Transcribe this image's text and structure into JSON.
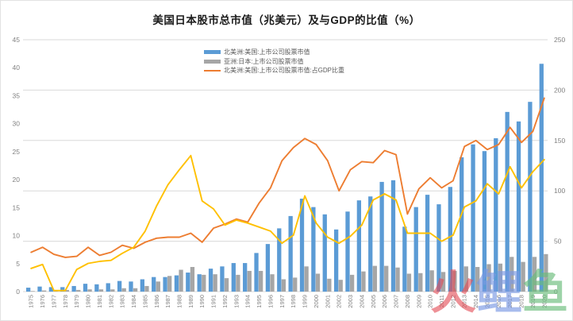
{
  "chart_data": {
    "type": "combo-bar-line",
    "title": "美国日本股市总市值（兆美元）及与GDP的比值（%）",
    "x": [
      "1975",
      "1976",
      "1977",
      "1978",
      "1979",
      "1980",
      "1981",
      "1982",
      "1983",
      "1984",
      "1985",
      "1986",
      "1987",
      "1988",
      "1989",
      "1990",
      "1991",
      "1992",
      "1993",
      "1994",
      "1995",
      "1996",
      "1997",
      "1998",
      "1999",
      "2000",
      "2001",
      "2002",
      "2003",
      "2004",
      "2005",
      "2006",
      "2007",
      "2008",
      "2009",
      "2010",
      "2011",
      "2012",
      "2013",
      "2014",
      "2015",
      "2016",
      "2017",
      "2018",
      "2019",
      "2020"
    ],
    "axes": {
      "left": {
        "min": 0,
        "max": 45,
        "ticks": [
          "45",
          "40",
          "35",
          "30",
          "25",
          "20",
          "15",
          "10",
          "5",
          "0"
        ],
        "tick_values": [
          45,
          40,
          35,
          30,
          25,
          20,
          15,
          10,
          5,
          0
        ]
      },
      "right": {
        "min": 0,
        "max": 250,
        "ticks": [
          "250",
          "200",
          "150",
          "100",
          "50",
          "0"
        ],
        "tick_values": [
          250,
          200,
          150,
          100,
          50,
          0
        ]
      }
    },
    "grid": "horizontal-at-right-axis-ticks",
    "legend_position": "top-center",
    "series": [
      {
        "id": "us-marketcap-bar",
        "name": "北美洲:美国:上市公司股票市值",
        "type": "bar",
        "axis": "left",
        "color": "#5B9BD5",
        "in_legend": true,
        "values": [
          0.7,
          0.9,
          0.8,
          0.8,
          1.0,
          1.4,
          1.3,
          1.5,
          1.9,
          1.8,
          2.2,
          2.6,
          2.6,
          2.9,
          3.4,
          3.1,
          4.1,
          4.5,
          5.1,
          5.1,
          6.9,
          8.5,
          11.3,
          13.5,
          16.6,
          15.1,
          13.8,
          11.1,
          14.3,
          16.3,
          17.0,
          19.6,
          19.9,
          11.6,
          15.1,
          17.3,
          15.6,
          18.7,
          24.0,
          26.3,
          25.1,
          27.4,
          32.1,
          30.4,
          33.9,
          40.7
        ]
      },
      {
        "id": "jp-marketcap-bar",
        "name": "亚洲:日本:上市公司股票市值",
        "type": "bar",
        "axis": "left",
        "color": "#A6A6A6",
        "in_legend": true,
        "values": [
          0.1,
          0.2,
          0.2,
          0.3,
          0.3,
          0.4,
          0.4,
          0.4,
          0.6,
          0.6,
          1.0,
          1.8,
          2.8,
          3.9,
          4.4,
          3.0,
          3.1,
          2.4,
          3.0,
          3.7,
          3.7,
          3.1,
          2.2,
          2.5,
          4.5,
          3.2,
          2.3,
          2.1,
          3.0,
          3.6,
          4.6,
          4.6,
          4.3,
          3.2,
          3.3,
          3.8,
          3.5,
          3.7,
          4.5,
          4.4,
          4.9,
          5.0,
          6.2,
          5.3,
          6.2,
          6.7
        ]
      },
      {
        "id": "us-pct-gdp-line",
        "name": "北美洲:美国:上市公司股票市值:占GDP比重",
        "type": "line",
        "axis": "right",
        "color": "#ED7D31",
        "in_legend": true,
        "values": [
          39,
          44,
          37,
          34,
          35,
          44,
          36,
          39,
          46,
          43,
          49,
          53,
          54,
          54,
          58,
          49,
          63,
          67,
          72,
          69,
          88,
          103,
          130,
          143,
          152,
          146,
          130,
          100,
          121,
          129,
          128,
          140,
          136,
          77,
          102,
          113,
          103,
          110,
          144,
          150,
          141,
          146,
          163,
          148,
          159,
          192
        ]
      },
      {
        "id": "jp-pct-gdp-line",
        "name": "",
        "type": "line",
        "axis": "right",
        "color": "#FFC000",
        "in_legend": false,
        "values": [
          23,
          27,
          1,
          1,
          22,
          28,
          30,
          31,
          38,
          44,
          60,
          85,
          106,
          121,
          135,
          90,
          82,
          66,
          71,
          68,
          64,
          60,
          48,
          56,
          95,
          68,
          54,
          48,
          55,
          66,
          91,
          97,
          91,
          58,
          58,
          58,
          50,
          56,
          84,
          90,
          107,
          97,
          124,
          103,
          119,
          131
        ]
      }
    ]
  },
  "legend": [
    {
      "label": "北美洲:美国:上市公司股票市值",
      "swatch": "bar",
      "color": "#5B9BD5"
    },
    {
      "label": "亚洲:日本:上市公司股票市值",
      "swatch": "bar",
      "color": "#A6A6A6"
    },
    {
      "label": "北美洲:美国:上市公司股票市值:占GDP比重",
      "swatch": "line",
      "color": "#ED7D31"
    }
  ],
  "watermark": {
    "chars": [
      {
        "text": "火",
        "color": "rgba(226,72,82,0.60)"
      },
      {
        "text": "鲤",
        "color": "rgba(122,152,228,0.65)"
      },
      {
        "text": "鱼",
        "color": "rgba(104,188,122,0.65)"
      }
    ]
  },
  "colors": {
    "grid": "#D9D9D9",
    "axis_text": "#808080",
    "title_text": "#1a1a1a",
    "background": "#ffffff"
  }
}
